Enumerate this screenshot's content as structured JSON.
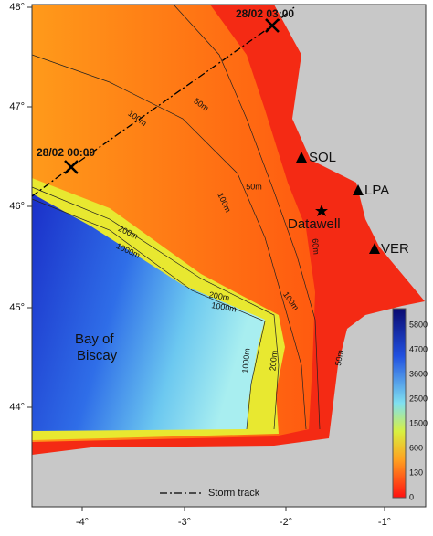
{
  "axes": {
    "x_ticks": [
      "-4°",
      "-3°",
      "-2°",
      "-1°"
    ],
    "y_ticks": [
      "48°",
      "47°",
      "46°",
      "45°",
      "44°"
    ]
  },
  "storm_track": {
    "points": [
      "28/02 03:00",
      "28/02 00:00"
    ],
    "legend": "Storm track"
  },
  "stations": [
    "SOL",
    "LPA",
    "VER",
    "Datawell"
  ],
  "region": [
    "Bay of",
    "Biscay"
  ],
  "contours": [
    "100m",
    "50m",
    "100m",
    "50m",
    "200m",
    "1000m",
    "200m",
    "1000m",
    "1000m",
    "200m",
    "100m",
    "60m",
    "50m"
  ],
  "colorbar_ticks": [
    "5800",
    "4700",
    "3600",
    "2500",
    "1500",
    "600",
    "130",
    "0"
  ]
}
